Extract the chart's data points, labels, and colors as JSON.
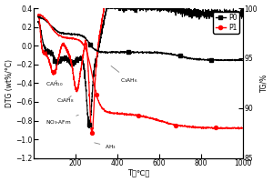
{
  "xlabel": "T（℃）",
  "ylabel_left": "DTG (wt%/°C)",
  "ylabel_right": "TG/%",
  "xlim": [
    0,
    1000
  ],
  "ylim_left": [
    -1.2,
    0.4
  ],
  "ylim_right": [
    85,
    100
  ],
  "yticks_left": [
    -1.2,
    -1.0,
    -0.8,
    -0.6,
    -0.4,
    -0.2,
    0.0,
    0.2,
    0.4
  ],
  "yticks_right": [
    85,
    90,
    95,
    100
  ],
  "xticks": [
    200,
    400,
    600,
    800,
    1000
  ],
  "bg_color": "#ffffff"
}
